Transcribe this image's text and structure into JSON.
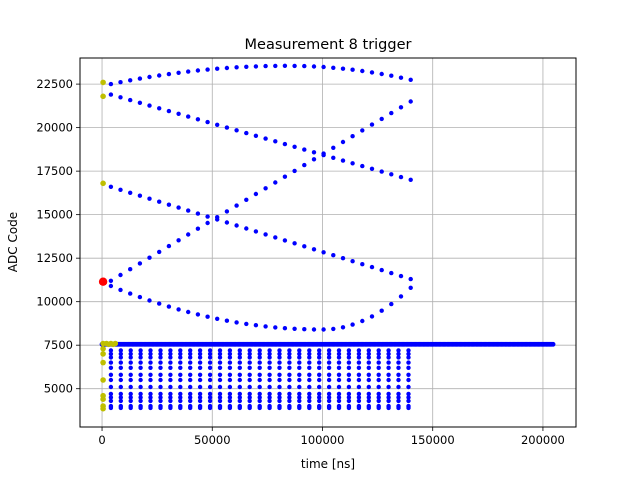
{
  "chart_data": {
    "type": "scatter",
    "title": "Measurement 8 trigger",
    "xlabel": "time [ns]",
    "ylabel": "ADC Code",
    "xlim": [
      -10000,
      215000
    ],
    "ylim": [
      2800,
      24000
    ],
    "xticks": [
      0,
      50000,
      100000,
      150000,
      200000
    ],
    "xtick_labels": [
      "0",
      "50000",
      "100000",
      "150000",
      "200000"
    ],
    "yticks": [
      5000,
      7500,
      10000,
      12500,
      15000,
      17500,
      20000,
      22500
    ],
    "ytick_labels": [
      "5000",
      "7500",
      "10000",
      "12500",
      "15000",
      "17500",
      "20000",
      "22500"
    ],
    "grid": true,
    "colors": {
      "blue": "#0000ff",
      "olive": "#bfbf00",
      "red": "#ff0000"
    },
    "series": [
      {
        "color": "blue",
        "curves": [
          {
            "from": [
              4000,
              22500
            ],
            "peak": [
              84000,
              23550
            ],
            "to": [
              140000,
              22750
            ]
          },
          {
            "from": [
              4000,
              21900
            ],
            "to": [
              140000,
              17000
            ]
          },
          {
            "from": [
              4000,
              16600
            ],
            "to": [
              140000,
              11300
            ]
          },
          {
            "from": [
              4000,
              11200
            ],
            "to": [
              140000,
              21500
            ]
          },
          {
            "from": [
              4000,
              10900
            ],
            "trough": [
              100000,
              8400
            ],
            "to": [
              140000,
              10800
            ]
          }
        ],
        "baseline": {
          "y": 7550,
          "x_range": [
            0,
            205000
          ]
        },
        "rows_x_range": [
          4000,
          140000
        ],
        "rows_y": [
          7200,
          7000,
          6800,
          6500,
          6200,
          5800,
          5500,
          5100,
          4700,
          4500,
          4300,
          4000,
          3900
        ]
      },
      {
        "color": "olive",
        "points": [
          [
            500,
            22600
          ],
          [
            500,
            21800
          ],
          [
            500,
            16800
          ],
          [
            500,
            11100
          ],
          [
            500,
            7600
          ],
          [
            500,
            7300
          ],
          [
            500,
            7000
          ],
          [
            500,
            6500
          ],
          [
            500,
            5500
          ],
          [
            500,
            4600
          ],
          [
            500,
            4400
          ],
          [
            500,
            4000
          ],
          [
            500,
            3850
          ],
          [
            2000,
            7600
          ],
          [
            3000,
            7550
          ],
          [
            4000,
            7600
          ],
          [
            5000,
            7550
          ],
          [
            6000,
            7600
          ]
        ]
      },
      {
        "color": "red",
        "points": [
          [
            500,
            11150
          ]
        ]
      }
    ]
  }
}
